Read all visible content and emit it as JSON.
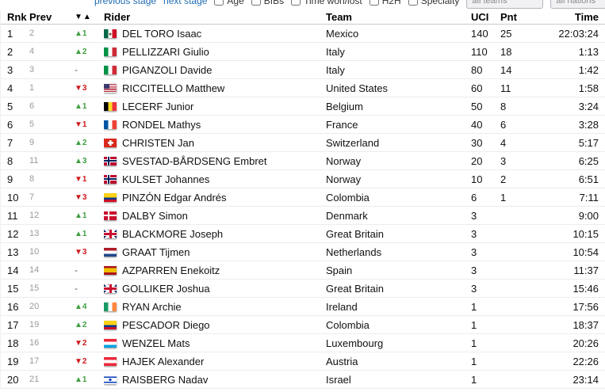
{
  "topbar": {
    "links": [
      {
        "label": "previous stage"
      },
      {
        "label": "next stage"
      }
    ],
    "checkboxes": [
      {
        "label": "Age"
      },
      {
        "label": "BIBs"
      },
      {
        "label": "Time won/lost"
      },
      {
        "label": "H2H"
      },
      {
        "label": "Specialty"
      }
    ],
    "filters": [
      {
        "value": "all teams"
      },
      {
        "value": "all nations"
      }
    ]
  },
  "colors": {
    "link_blue": "#1f6db4",
    "rank_up_green": "#3f9e3f",
    "rank_down_red": "#cf1a1a"
  },
  "table": {
    "headers": {
      "rnk": "Rnk",
      "prev": "Prev",
      "delta": "▼▲",
      "rider": "Rider",
      "team": "Team",
      "uci": "UCI",
      "pnt": "Pnt",
      "time": "Time"
    },
    "rows": [
      {
        "rank": 1,
        "prev": 2,
        "delta_text": "▲1",
        "delta_dir": "up",
        "nation": "mx",
        "rider": "DEL TORO Isaac",
        "team": "Mexico",
        "uci": 140,
        "pnt": 25,
        "time": "22:03:24"
      },
      {
        "rank": 2,
        "prev": 4,
        "delta_text": "▲2",
        "delta_dir": "up",
        "nation": "it",
        "rider": "PELLIZZARI Giulio",
        "team": "Italy",
        "uci": 110,
        "pnt": 18,
        "time": "1:13"
      },
      {
        "rank": 3,
        "prev": 3,
        "delta_text": "-",
        "delta_dir": "none",
        "nation": "it",
        "rider": "PIGANZOLI Davide",
        "team": "Italy",
        "uci": 80,
        "pnt": 14,
        "time": "1:42"
      },
      {
        "rank": 4,
        "prev": 1,
        "delta_text": "▼3",
        "delta_dir": "down",
        "nation": "us",
        "rider": "RICCITELLO Matthew",
        "team": "United States",
        "uci": 60,
        "pnt": 11,
        "time": "1:58"
      },
      {
        "rank": 5,
        "prev": 6,
        "delta_text": "▲1",
        "delta_dir": "up",
        "nation": "be",
        "rider": "LECERF Junior",
        "team": "Belgium",
        "uci": 50,
        "pnt": 8,
        "time": "3:24"
      },
      {
        "rank": 6,
        "prev": 5,
        "delta_text": "▼1",
        "delta_dir": "down",
        "nation": "fr",
        "rider": "RONDEL Mathys",
        "team": "France",
        "uci": 40,
        "pnt": 6,
        "time": "3:28"
      },
      {
        "rank": 7,
        "prev": 9,
        "delta_text": "▲2",
        "delta_dir": "up",
        "nation": "ch",
        "rider": "CHRISTEN Jan",
        "team": "Switzerland",
        "uci": 30,
        "pnt": 4,
        "time": "5:17"
      },
      {
        "rank": 8,
        "prev": 11,
        "delta_text": "▲3",
        "delta_dir": "up",
        "nation": "no",
        "rider": "SVESTAD-BÅRDSENG Embret",
        "team": "Norway",
        "uci": 20,
        "pnt": 3,
        "time": "6:25"
      },
      {
        "rank": 9,
        "prev": 8,
        "delta_text": "▼1",
        "delta_dir": "down",
        "nation": "no",
        "rider": "KULSET Johannes",
        "team": "Norway",
        "uci": 10,
        "pnt": 2,
        "time": "6:51"
      },
      {
        "rank": 10,
        "prev": 7,
        "delta_text": "▼3",
        "delta_dir": "down",
        "nation": "co",
        "rider": "PINZÓN Edgar Andrés",
        "team": "Colombia",
        "uci": 6,
        "pnt": 1,
        "time": "7:11"
      },
      {
        "rank": 11,
        "prev": 12,
        "delta_text": "▲1",
        "delta_dir": "up",
        "nation": "dk",
        "rider": "DALBY Simon",
        "team": "Denmark",
        "uci": 3,
        "pnt": "",
        "time": "9:00"
      },
      {
        "rank": 12,
        "prev": 13,
        "delta_text": "▲1",
        "delta_dir": "up",
        "nation": "gb",
        "rider": "BLACKMORE Joseph",
        "team": "Great Britain",
        "uci": 3,
        "pnt": "",
        "time": "10:15"
      },
      {
        "rank": 13,
        "prev": 10,
        "delta_text": "▼3",
        "delta_dir": "down",
        "nation": "nl",
        "rider": "GRAAT Tijmen",
        "team": "Netherlands",
        "uci": 3,
        "pnt": "",
        "time": "10:54"
      },
      {
        "rank": 14,
        "prev": 14,
        "delta_text": "-",
        "delta_dir": "none",
        "nation": "es",
        "rider": "AZPARREN Enekoitz",
        "team": "Spain",
        "uci": 3,
        "pnt": "",
        "time": "11:37"
      },
      {
        "rank": 15,
        "prev": 15,
        "delta_text": "-",
        "delta_dir": "none",
        "nation": "gb",
        "rider": "GOLLIKER Joshua",
        "team": "Great Britain",
        "uci": 3,
        "pnt": "",
        "time": "15:46"
      },
      {
        "rank": 16,
        "prev": 20,
        "delta_text": "▲4",
        "delta_dir": "up",
        "nation": "ie",
        "rider": "RYAN Archie",
        "team": "Ireland",
        "uci": 1,
        "pnt": "",
        "time": "17:56"
      },
      {
        "rank": 17,
        "prev": 19,
        "delta_text": "▲2",
        "delta_dir": "up",
        "nation": "co",
        "rider": "PESCADOR Diego",
        "team": "Colombia",
        "uci": 1,
        "pnt": "",
        "time": "18:37"
      },
      {
        "rank": 18,
        "prev": 16,
        "delta_text": "▼2",
        "delta_dir": "down",
        "nation": "lu",
        "rider": "WENZEL Mats",
        "team": "Luxembourg",
        "uci": 1,
        "pnt": "",
        "time": "20:26"
      },
      {
        "rank": 19,
        "prev": 17,
        "delta_text": "▼2",
        "delta_dir": "down",
        "nation": "at",
        "rider": "HAJEK Alexander",
        "team": "Austria",
        "uci": 1,
        "pnt": "",
        "time": "22:26"
      },
      {
        "rank": 20,
        "prev": 21,
        "delta_text": "▲1",
        "delta_dir": "up",
        "nation": "il",
        "rider": "RAISBERG Nadav",
        "team": "Israel",
        "uci": 1,
        "pnt": "",
        "time": "23:14"
      }
    ]
  }
}
